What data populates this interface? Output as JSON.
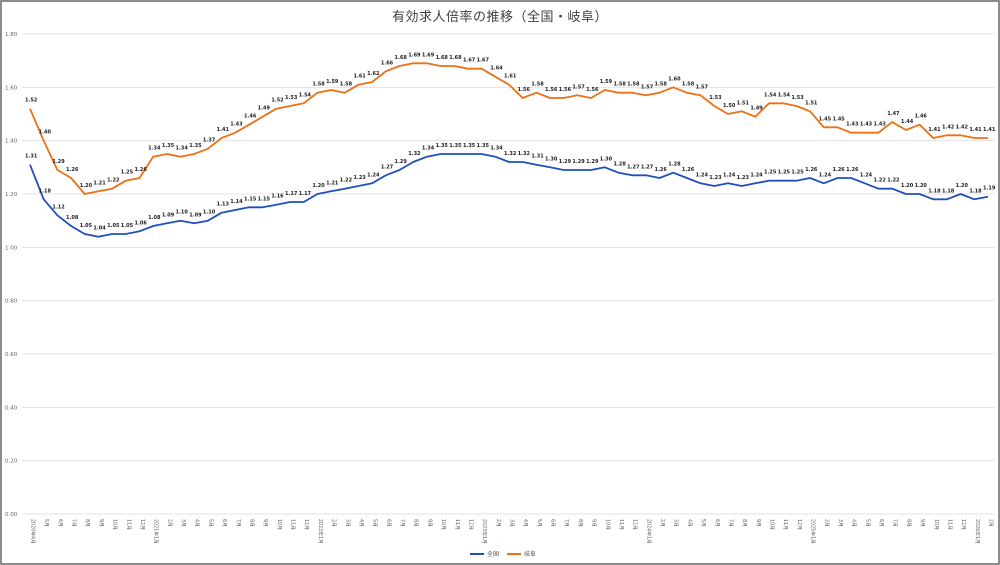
{
  "chart_data": {
    "type": "line",
    "title": "有効求人倍率の推移（全国・岐阜）",
    "xlabel": "",
    "ylabel": "",
    "ylim": [
      0,
      1.8
    ],
    "yticks": [
      "0.00",
      "0.20",
      "0.40",
      "0.60",
      "0.80",
      "1.00",
      "1.20",
      "1.40",
      "1.60",
      "1.80"
    ],
    "grid": true,
    "legend_position": "bottom",
    "categories": [
      "2020年4月",
      "5月",
      "6月",
      "7月",
      "8月",
      "9月",
      "10月",
      "11月",
      "12月",
      "2021年1月",
      "2月",
      "3月",
      "4月",
      "5月",
      "6月",
      "7月",
      "8月",
      "9月",
      "10月",
      "11月",
      "12月",
      "2022年1月",
      "2月",
      "3月",
      "4月",
      "5月",
      "6月",
      "7月",
      "8月",
      "9月",
      "10月",
      "11月",
      "12月",
      "2023年1月",
      "2月",
      "3月",
      "4月",
      "5月",
      "6月",
      "7月",
      "8月",
      "9月",
      "10月",
      "11月",
      "12月",
      "2024年1月",
      "2月",
      "3月",
      "4月",
      "5月",
      "6月",
      "7月",
      "8月",
      "9月",
      "10月",
      "11月",
      "12月",
      "2025年1月",
      "2月",
      "3月",
      "4月",
      "5月",
      "6月",
      "7月",
      "8月",
      "9月",
      "10月",
      "11月",
      "12月",
      "2026年1月",
      "2月"
    ],
    "series": [
      {
        "name": "全国",
        "color": "#1f4fbf",
        "values": [
          1.31,
          1.18,
          1.12,
          1.08,
          1.05,
          1.04,
          1.05,
          1.05,
          1.06,
          1.08,
          1.09,
          1.1,
          1.09,
          1.1,
          1.13,
          1.14,
          1.15,
          1.15,
          1.16,
          1.17,
          1.17,
          1.2,
          1.21,
          1.22,
          1.23,
          1.24,
          1.27,
          1.29,
          1.32,
          1.34,
          1.35,
          1.35,
          1.35,
          1.35,
          1.34,
          1.32,
          1.32,
          1.31,
          1.3,
          1.29,
          1.29,
          1.29,
          1.3,
          1.28,
          1.27,
          1.27,
          1.26,
          1.28,
          1.26,
          1.24,
          1.23,
          1.24,
          1.23,
          1.24,
          1.25,
          1.25,
          1.25,
          1.26,
          1.24,
          1.26,
          1.26,
          1.24,
          1.22,
          1.22,
          1.2,
          1.2,
          1.18,
          1.18,
          1.2,
          1.18,
          1.19
        ]
      },
      {
        "name": "岐阜",
        "color": "#ed7014",
        "values": [
          1.52,
          1.4,
          1.29,
          1.26,
          1.2,
          1.21,
          1.22,
          1.25,
          1.26,
          1.34,
          1.35,
          1.34,
          1.35,
          1.37,
          1.41,
          1.43,
          1.46,
          1.49,
          1.52,
          1.53,
          1.54,
          1.58,
          1.59,
          1.58,
          1.61,
          1.62,
          1.66,
          1.68,
          1.69,
          1.69,
          1.68,
          1.68,
          1.67,
          1.67,
          1.64,
          1.61,
          1.56,
          1.58,
          1.56,
          1.56,
          1.57,
          1.56,
          1.59,
          1.58,
          1.58,
          1.57,
          1.58,
          1.6,
          1.58,
          1.57,
          1.53,
          1.5,
          1.51,
          1.49,
          1.54,
          1.54,
          1.53,
          1.51,
          1.45,
          1.45,
          1.43,
          1.43,
          1.43,
          1.47,
          1.44,
          1.46,
          1.41,
          1.42,
          1.42,
          1.41,
          1.41
        ]
      }
    ]
  }
}
